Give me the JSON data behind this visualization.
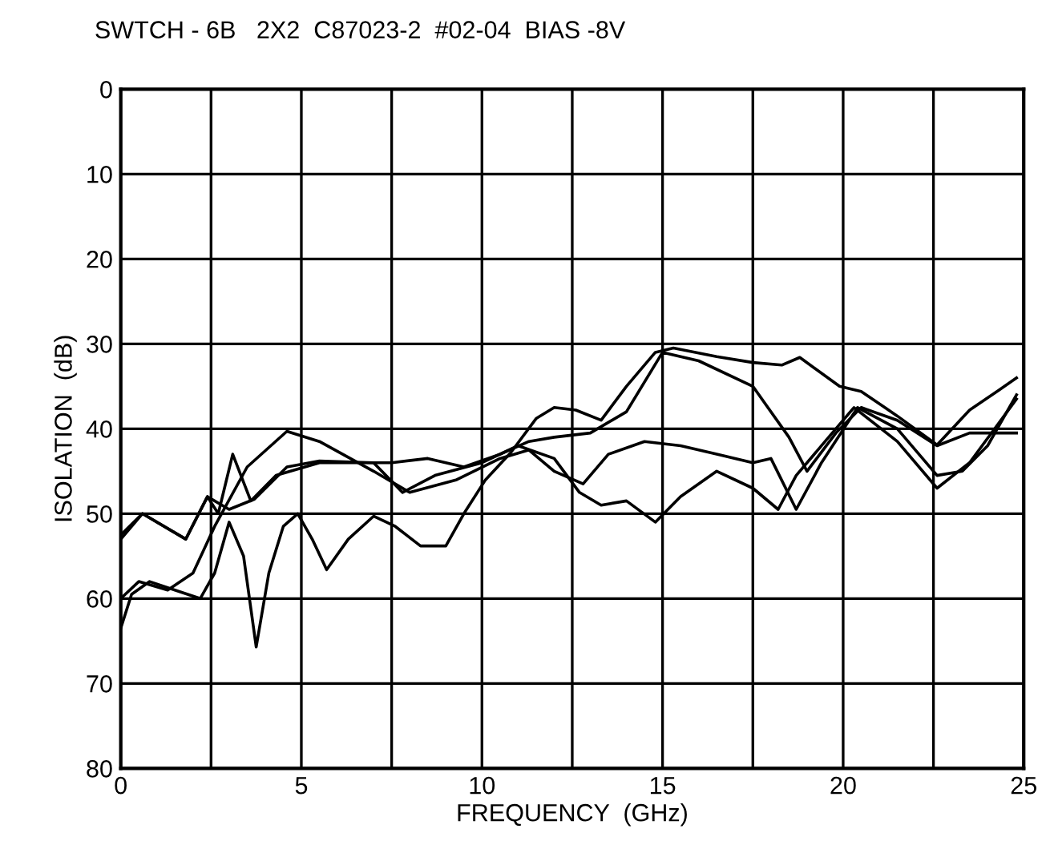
{
  "chart_data": {
    "type": "line",
    "title": "SWTCH - 6B   2X2  C87023-2  #02-04  BIAS -8V",
    "xlabel": "FREQUENCY  (GHz)",
    "ylabel": "ISOLATION  (dB)",
    "xlim": [
      0,
      25
    ],
    "ylim": [
      80,
      0
    ],
    "xticks": [
      0,
      {
        "value": 2.5,
        "label": null
      },
      5,
      {
        "value": 7.5,
        "label": null
      },
      10,
      {
        "value": 12.5,
        "label": null
      },
      15,
      {
        "value": 17.5,
        "label": null
      },
      20,
      {
        "value": 22.5,
        "label": null
      },
      25
    ],
    "yticks": [
      0,
      10,
      20,
      30,
      40,
      50,
      60,
      70,
      80
    ],
    "grid": true,
    "line_style": "solid",
    "series": [
      {
        "color": "#000000",
        "x": [
          0,
          0.3,
          0.8,
          1.5,
          2.2,
          2.6,
          3.0,
          3.4,
          3.75,
          4.1,
          4.5,
          4.9,
          5.3,
          5.7,
          6.3,
          7.0,
          7.6,
          8.3,
          9.0,
          9.5,
          10.1,
          10.8,
          11.5,
          12.0,
          12.6,
          13.3,
          14.0,
          14.8,
          15.3,
          16.5,
          17.5,
          18.3,
          18.8,
          19.9,
          20.5,
          21.5,
          22.6,
          23.5,
          24.3,
          24.8
        ],
        "values": [
          63.5,
          59.5,
          58,
          59,
          60,
          57,
          51,
          55,
          65.7,
          57,
          51.5,
          50,
          53,
          56.6,
          53,
          50.3,
          51.5,
          53.8,
          53.8,
          50,
          46,
          42.8,
          38.8,
          37.5,
          37.8,
          39,
          35,
          31,
          30.5,
          31.5,
          32.2,
          32.5,
          31.6,
          35,
          35.6,
          38.5,
          41.9,
          37.8,
          35.5,
          34
        ]
      },
      {
        "color": "#000000",
        "x": [
          0,
          0.6,
          1.8,
          2.4,
          2.7,
          3.1,
          3.6,
          4.3,
          5.5,
          7.5,
          8.5,
          9.5,
          10.5,
          11.3,
          12,
          13,
          14,
          15,
          16,
          17.5,
          18.5,
          19,
          19.8,
          20.5,
          21.5,
          22.6,
          23.5,
          24.8
        ],
        "values": [
          52.5,
          50,
          53,
          48,
          50,
          43,
          48.5,
          45.5,
          44,
          44,
          43.5,
          44.5,
          43,
          41.5,
          41,
          40.5,
          38,
          31,
          32,
          35,
          41,
          45,
          40.5,
          37.5,
          39,
          42,
          40.5,
          40.5
        ]
      },
      {
        "color": "#000000",
        "x": [
          0,
          0.5,
          1.3,
          2.0,
          2.6,
          3.5,
          4.6,
          5.5,
          7,
          8,
          9.3,
          10.5,
          11.3,
          12,
          12.8,
          13.5,
          14.5,
          15.5,
          16.5,
          17.5,
          18.0,
          18.7,
          19.4,
          20.4,
          21.5,
          22.6,
          23.3,
          24,
          24.8
        ],
        "values": [
          60,
          58,
          59,
          57,
          51.5,
          44.5,
          40.3,
          41.5,
          45,
          47.5,
          46,
          43.5,
          42.5,
          45,
          46.5,
          43,
          41.5,
          42,
          43,
          44,
          43.5,
          49.5,
          44,
          37.5,
          40,
          45.5,
          45,
          42,
          36
        ]
      },
      {
        "color": "#000000",
        "x": [
          0,
          0.6,
          1.8,
          2.4,
          3.0,
          3.7,
          4.6,
          5.5,
          7,
          7.8,
          8.7,
          10,
          11,
          12,
          12.7,
          13.3,
          14,
          14.8,
          15.5,
          16.5,
          17.5,
          18.2,
          18.7,
          19.5,
          20.3,
          21.5,
          22.6,
          23.5,
          24.8
        ],
        "values": [
          53,
          50,
          53,
          48,
          49.5,
          48.3,
          44.5,
          43.8,
          44,
          47.5,
          45.5,
          44,
          42,
          43.5,
          47.5,
          49,
          48.5,
          51,
          48,
          45,
          47,
          49.5,
          45.5,
          41.5,
          37.5,
          41.5,
          47,
          44,
          36.5
        ]
      }
    ]
  }
}
